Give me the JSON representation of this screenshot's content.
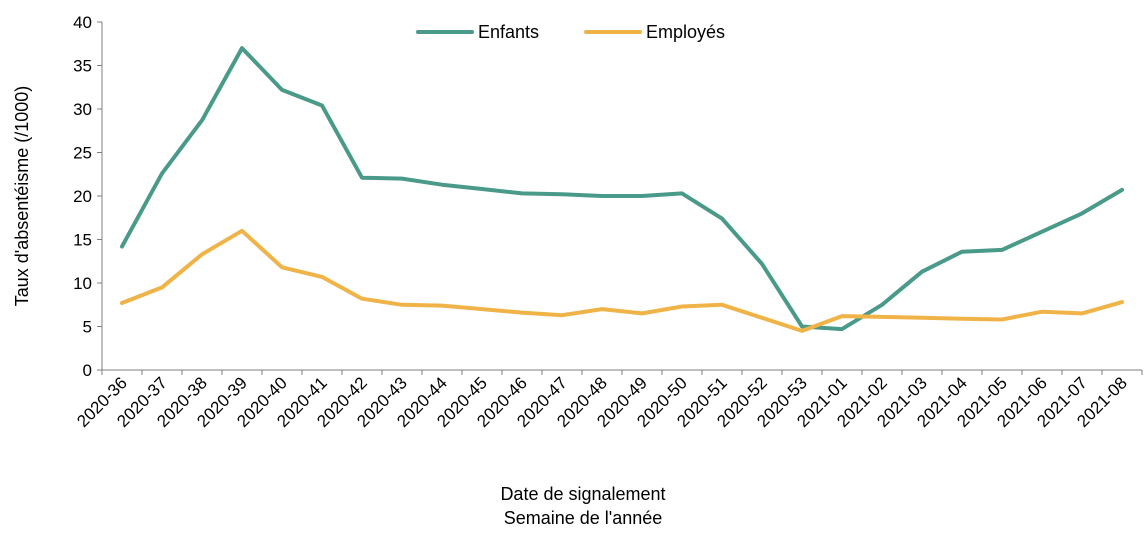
{
  "chart_data": {
    "type": "line",
    "title": "",
    "xlabel": "Date de signalement",
    "xlabel2": "Semaine de l'année",
    "ylabel": "Taux d'absentéisme (/1000)",
    "ylim": [
      0,
      40
    ],
    "yticks": [
      "0",
      "5",
      "10",
      "15",
      "20",
      "25",
      "30",
      "35",
      "40"
    ],
    "legend_position": "top-center",
    "grid": false,
    "categories": [
      "2020-36",
      "2020-37",
      "2020-38",
      "2020-39",
      "2020-40",
      "2020-41",
      "2020-42",
      "2020-43",
      "2020-44",
      "2020-45",
      "2020-46",
      "2020-47",
      "2020-48",
      "2020-49",
      "2020-50",
      "2020-51",
      "2020-52",
      "2020-53",
      "2021-01",
      "2021-02",
      "2021-03",
      "2021-04",
      "2021-05",
      "2021-06",
      "2021-07",
      "2021-08"
    ],
    "series": [
      {
        "name": "Enfants",
        "color": "#4a9a8a",
        "values": [
          14.2,
          22.6,
          28.7,
          37.0,
          32.2,
          30.4,
          22.1,
          22.0,
          21.3,
          20.8,
          20.3,
          20.2,
          20.0,
          20.0,
          20.3,
          17.4,
          12.2,
          5.0,
          4.7,
          7.5,
          11.3,
          13.6,
          13.8,
          15.9,
          18.0,
          20.7
        ]
      },
      {
        "name": "Employés",
        "color": "#f0b347",
        "values": [
          7.7,
          9.5,
          13.3,
          16.0,
          11.8,
          10.7,
          8.2,
          7.5,
          7.4,
          7.0,
          6.6,
          6.3,
          7.0,
          6.5,
          7.3,
          7.5,
          6.0,
          4.5,
          6.2,
          6.1,
          6.0,
          5.9,
          5.8,
          6.7,
          6.5,
          7.8
        ]
      }
    ]
  }
}
